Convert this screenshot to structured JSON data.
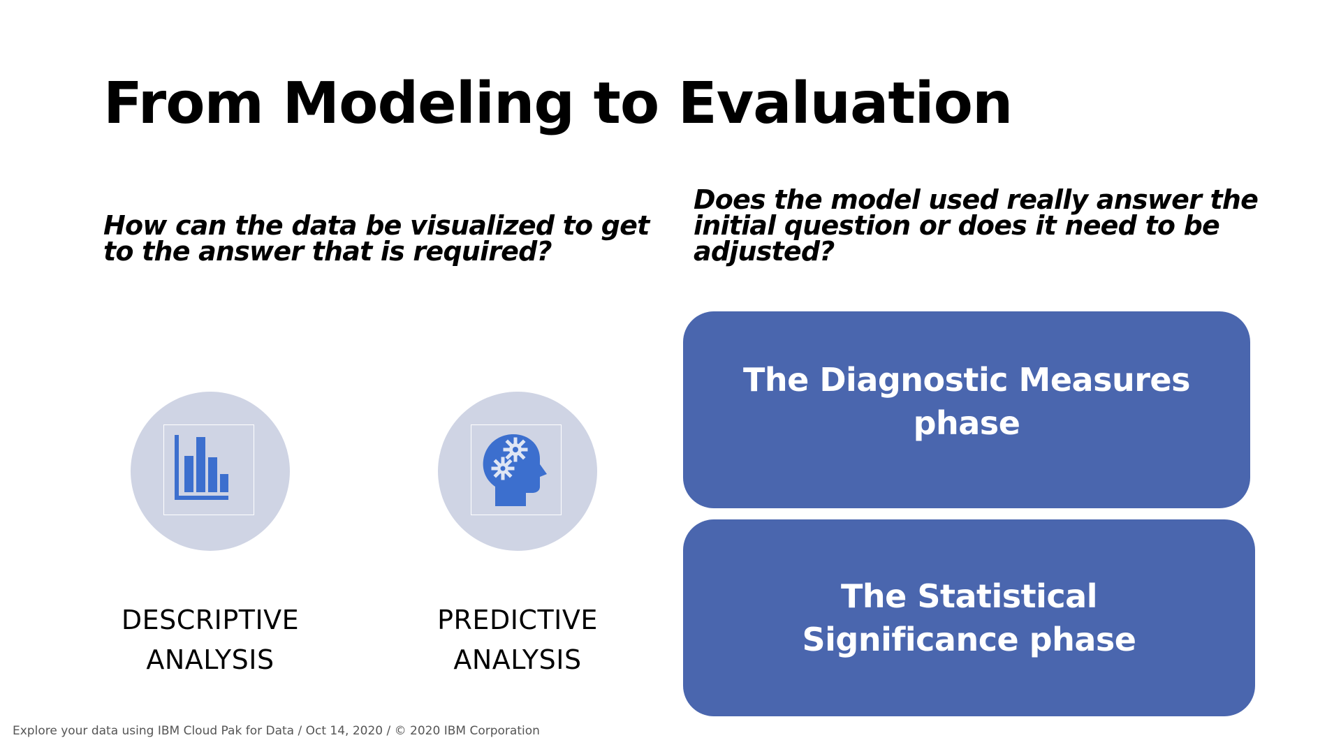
{
  "slide": {
    "title": "From Modeling to Evaluation",
    "footer": "Explore your data using IBM Cloud Pak for Data / Oct 14, 2020 / © 2020 IBM Corporation"
  },
  "questions": {
    "left": "How can the data be visualized to get to the answer that is required?",
    "right": "Does the model used really answer the initial question or does it need to be adjusted?"
  },
  "analyses": [
    {
      "icon": "bar-chart-icon",
      "label_line1": "DESCRIPTIVE",
      "label_line2": "ANALYSIS"
    },
    {
      "icon": "head-gears-icon",
      "label_line1": "PREDICTIVE",
      "label_line2": "ANALYSIS"
    }
  ],
  "phases": [
    {
      "label": "The Diagnostic Measures phase"
    },
    {
      "label": "The Statistical Significance phase"
    }
  ],
  "colors": {
    "phase_box": "#4a66ae",
    "icon_circle": "#cfd4e4",
    "icon_blue": "#3c6fce"
  }
}
